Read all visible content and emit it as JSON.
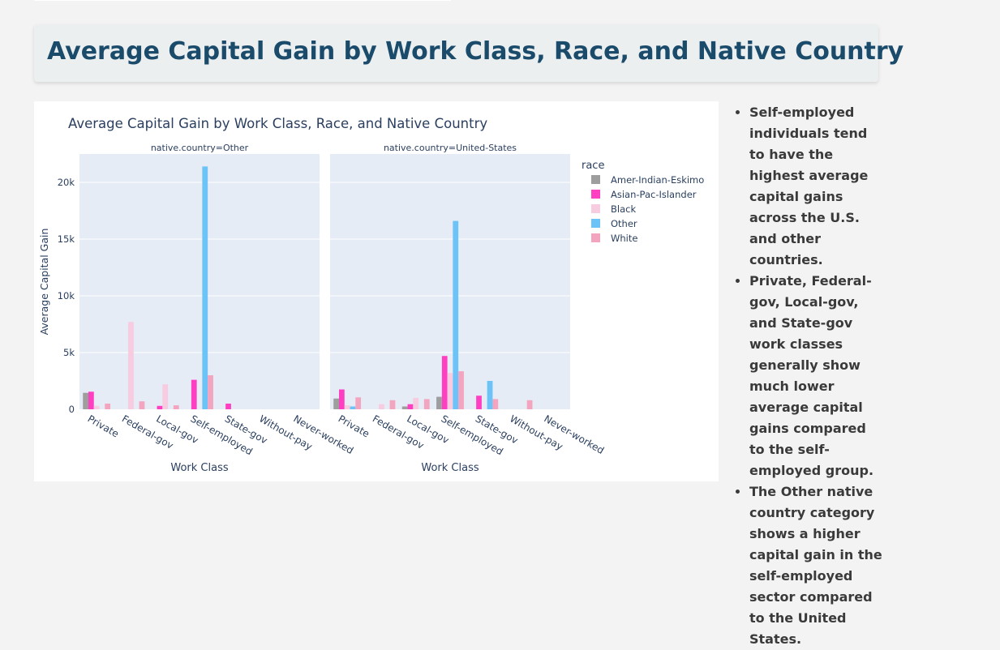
{
  "page": {
    "title": "Average Capital Gain by Work Class, Race, and Native Country"
  },
  "insights": [
    "Self-employed individuals tend to have the highest average capital gains across the U.S. and other countries.",
    "Private, Federal-gov, Local-gov, and State-gov work classes generally show much lower average capital gains compared to the self-employed group.",
    "The Other native country category shows a higher capital gain in the self-employed sector compared to the United States."
  ],
  "chart_data": {
    "type": "bar",
    "title": "Average Capital Gain by Work Class, Race, and Native Country",
    "xlabel": "Work Class",
    "ylabel": "Average Capital Gain",
    "ylim": [
      0,
      22500
    ],
    "yticks": [
      0,
      5000,
      10000,
      15000,
      20000
    ],
    "ytick_labels": [
      "0",
      "5k",
      "10k",
      "15k",
      "20k"
    ],
    "categories": [
      "Private",
      "Federal-gov",
      "Local-gov",
      "Self-employed",
      "State-gov",
      "Without-pay",
      "Never-worked"
    ],
    "legend_title": "race",
    "legend_position": "right",
    "series_colors": {
      "Amer-Indian-Eskimo": "#9e9e9e",
      "Asian-Pac-Islander": "#ff3fc2",
      "Black": "#f7cbe0",
      "Other": "#6cc3f7",
      "White": "#f3a4bf"
    },
    "panels": [
      {
        "label": "native.country=Other",
        "series": [
          {
            "name": "Amer-Indian-Eskimo",
            "values": [
              1450,
              0,
              0,
              0,
              0,
              0,
              0
            ]
          },
          {
            "name": "Asian-Pac-Islander",
            "values": [
              1550,
              0,
              300,
              2600,
              500,
              0,
              0
            ]
          },
          {
            "name": "Black",
            "values": [
              300,
              7700,
              2200,
              0,
              0,
              0,
              0
            ]
          },
          {
            "name": "Other",
            "values": [
              0,
              0,
              0,
              21400,
              0,
              0,
              0
            ]
          },
          {
            "name": "White",
            "values": [
              500,
              700,
              350,
              3000,
              0,
              0,
              0
            ]
          }
        ]
      },
      {
        "label": "native.country=United-States",
        "series": [
          {
            "name": "Amer-Indian-Eskimo",
            "values": [
              950,
              0,
              250,
              1100,
              0,
              0,
              0
            ]
          },
          {
            "name": "Asian-Pac-Islander",
            "values": [
              1750,
              0,
              450,
              4700,
              1200,
              0,
              0
            ]
          },
          {
            "name": "Black",
            "values": [
              350,
              450,
              1000,
              3200,
              0,
              0,
              0
            ]
          },
          {
            "name": "Other",
            "values": [
              250,
              0,
              0,
              16600,
              2500,
              0,
              0
            ]
          },
          {
            "name": "White",
            "values": [
              1050,
              800,
              900,
              3350,
              900,
              800,
              0
            ]
          }
        ]
      }
    ]
  }
}
